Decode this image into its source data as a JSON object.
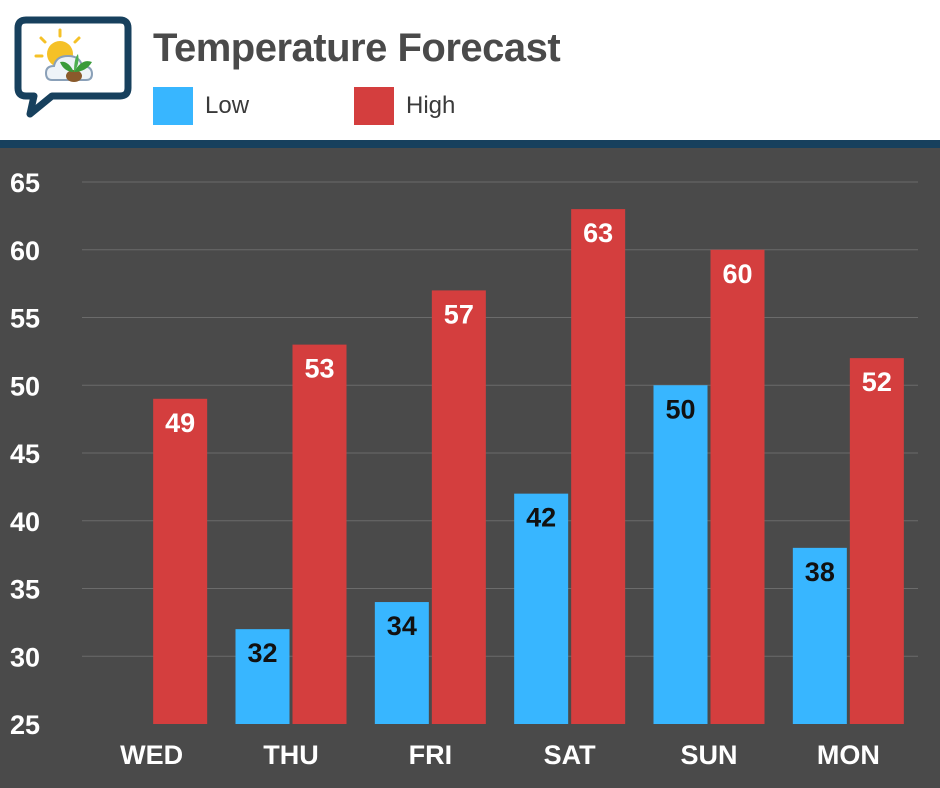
{
  "header": {
    "title": "Temperature Forecast",
    "logo_icon": "sun-cloud-plant-icon"
  },
  "colors": {
    "low": "#38b6ff",
    "high": "#d43e3e",
    "background": "#4a4a4a",
    "divider": "#17405d",
    "grid": "#6b6b6b",
    "low_label": "#111111",
    "high_label": "#ffffff"
  },
  "legend": [
    {
      "name": "Low",
      "color": "#38b6ff"
    },
    {
      "name": "High",
      "color": "#d43e3e"
    }
  ],
  "chart_data": {
    "type": "bar",
    "title": "Temperature Forecast",
    "xlabel": "",
    "ylabel": "",
    "categories": [
      "WED",
      "THU",
      "FRI",
      "SAT",
      "SUN",
      "MON"
    ],
    "series": [
      {
        "name": "Low",
        "values": [
          null,
          32,
          34,
          42,
          50,
          38
        ]
      },
      {
        "name": "High",
        "values": [
          49,
          53,
          57,
          63,
          60,
          52
        ]
      }
    ],
    "ylim": [
      25,
      65
    ],
    "yticks": [
      25,
      30,
      35,
      40,
      45,
      50,
      55,
      60,
      65
    ],
    "grid": true,
    "legend_position": "top"
  }
}
